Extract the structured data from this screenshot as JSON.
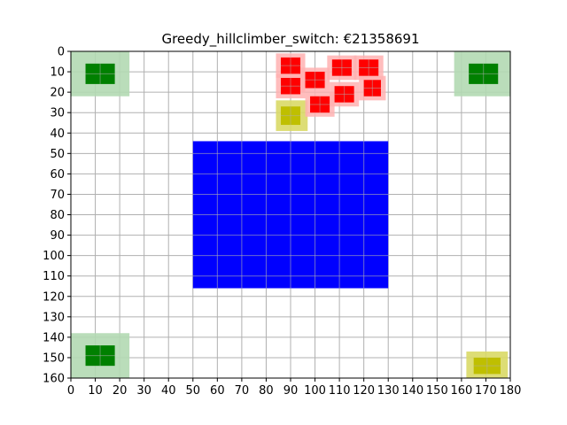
{
  "chart_data": {
    "type": "scatter",
    "title": "Greedy_hillclimber_switch: €21358691",
    "xlabel": "",
    "ylabel": "",
    "xlim": [
      0,
      180
    ],
    "ylim": [
      160,
      0
    ],
    "y_inverted": true,
    "grid": true,
    "x_ticks": [
      "0",
      "10",
      "20",
      "30",
      "40",
      "50",
      "60",
      "70",
      "80",
      "90",
      "100",
      "110",
      "120",
      "130",
      "140",
      "150",
      "160",
      "170",
      "180"
    ],
    "y_ticks": [
      "0",
      "10",
      "20",
      "30",
      "40",
      "50",
      "60",
      "70",
      "80",
      "90",
      "100",
      "110",
      "120",
      "130",
      "140",
      "150",
      "160"
    ],
    "colors": {
      "blue_block": "#0000ff",
      "green_house": "#008000",
      "green_zone": "#b2d9b2",
      "red_house": "#ff0000",
      "red_zone": "#ffb2b2",
      "yellow_house": "#bfbf00",
      "yellow_zone": "#d9d966",
      "grid": "#b0b0b0"
    },
    "areas": [
      {
        "kind": "water",
        "color": "blue",
        "x": [
          50,
          130
        ],
        "y": [
          44,
          116
        ]
      }
    ],
    "houses": [
      {
        "color": "green",
        "x": [
          6,
          18
        ],
        "y": [
          6,
          16
        ],
        "zone_x": [
          0,
          24
        ],
        "zone_y": [
          0,
          22
        ]
      },
      {
        "color": "green",
        "x": [
          163,
          175
        ],
        "y": [
          6,
          16
        ],
        "zone_x": [
          157,
          181
        ],
        "zone_y": [
          0,
          22
        ]
      },
      {
        "color": "green",
        "x": [
          6,
          18
        ],
        "y": [
          144,
          154
        ],
        "zone_x": [
          0,
          24
        ],
        "zone_y": [
          138,
          160
        ]
      },
      {
        "color": "yellow",
        "x": [
          165,
          176
        ],
        "y": [
          150,
          158
        ],
        "zone_x": [
          162,
          179
        ],
        "zone_y": [
          147,
          161
        ]
      },
      {
        "color": "yellow",
        "x": [
          86,
          94
        ],
        "y": [
          27,
          36
        ],
        "zone_x": [
          84,
          97
        ],
        "zone_y": [
          24,
          39
        ]
      },
      {
        "color": "red",
        "x": [
          86,
          94
        ],
        "y": [
          3,
          11
        ],
        "zone_x": [
          84,
          96
        ],
        "zone_y": [
          1,
          13
        ]
      },
      {
        "color": "red",
        "x": [
          86,
          94
        ],
        "y": [
          13,
          21
        ],
        "zone_x": [
          84,
          96
        ],
        "zone_y": [
          11,
          23
        ]
      },
      {
        "color": "red",
        "x": [
          96,
          104
        ],
        "y": [
          10,
          18
        ],
        "zone_x": [
          94,
          106
        ],
        "zone_y": [
          8,
          20
        ]
      },
      {
        "color": "red",
        "x": [
          107,
          115
        ],
        "y": [
          4,
          12
        ],
        "zone_x": [
          105,
          117
        ],
        "zone_y": [
          2,
          14
        ]
      },
      {
        "color": "red",
        "x": [
          118,
          126
        ],
        "y": [
          4,
          12
        ],
        "zone_x": [
          116,
          128
        ],
        "zone_y": [
          2,
          14
        ]
      },
      {
        "color": "red",
        "x": [
          120,
          127
        ],
        "y": [
          14,
          22
        ],
        "zone_x": [
          118,
          129
        ],
        "zone_y": [
          12,
          24
        ]
      },
      {
        "color": "red",
        "x": [
          108,
          116
        ],
        "y": [
          17,
          25
        ],
        "zone_x": [
          106,
          118
        ],
        "zone_y": [
          15,
          27
        ]
      },
      {
        "color": "red",
        "x": [
          98,
          106
        ],
        "y": [
          22,
          30
        ],
        "zone_x": [
          96,
          108
        ],
        "zone_y": [
          20,
          32
        ]
      }
    ]
  }
}
